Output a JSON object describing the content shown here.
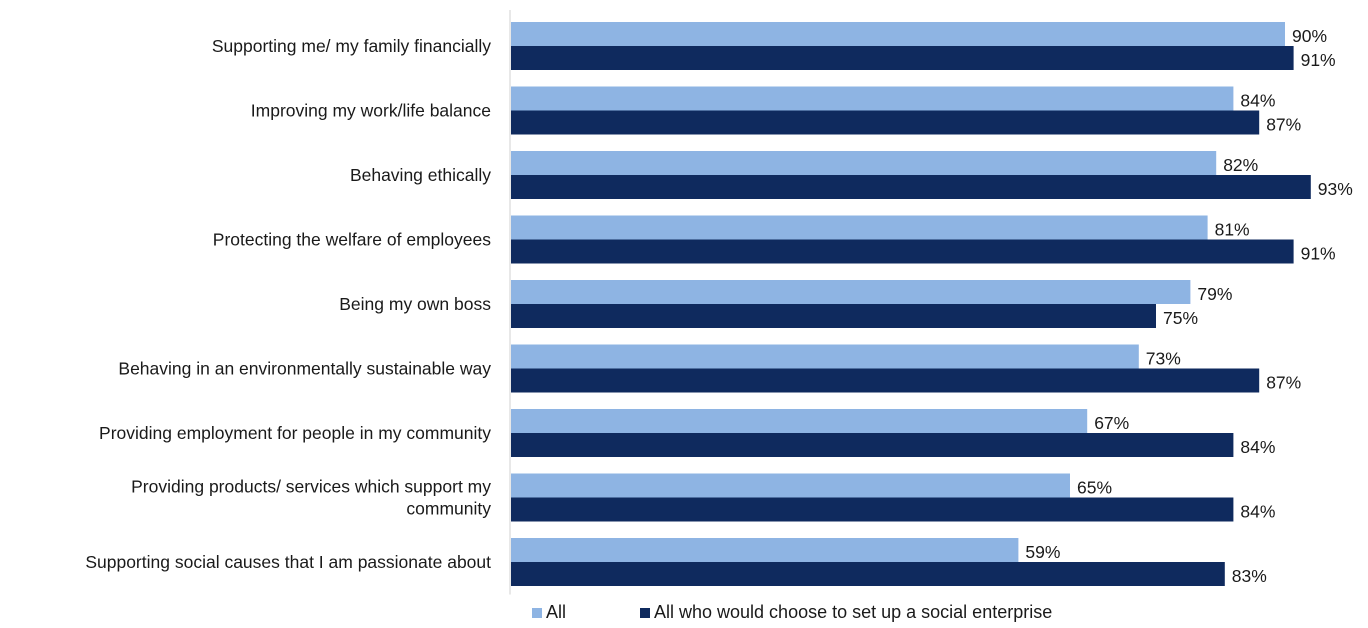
{
  "chart_data": {
    "type": "bar",
    "orientation": "horizontal",
    "title": "",
    "xlabel": "",
    "ylabel": "",
    "xlim": [
      0,
      100
    ],
    "grid": false,
    "legend_position": "bottom",
    "value_suffix": "%",
    "categories": [
      "Supporting me/ my family financially",
      "Improving my work/life balance",
      "Behaving ethically",
      "Protecting the welfare of employees",
      "Being my own boss",
      "Behaving in an environmentally sustainable way",
      "Providing employment for people in my community",
      "Providing products/ services which support my community",
      "Supporting social causes that I am passionate about"
    ],
    "category_lines": [
      [
        "Supporting me/ my family financially"
      ],
      [
        "Improving my work/life balance"
      ],
      [
        "Behaving ethically"
      ],
      [
        "Protecting the welfare of employees"
      ],
      [
        "Being my own boss"
      ],
      [
        "Behaving in an environmentally sustainable way"
      ],
      [
        "Providing employment for people in my community"
      ],
      [
        "Providing products/ services which support my",
        "community"
      ],
      [
        "Supporting social causes that I am passionate about"
      ]
    ],
    "series": [
      {
        "name": "All",
        "color": "#8EB4E3",
        "values": [
          90,
          84,
          82,
          81,
          79,
          73,
          67,
          65,
          59
        ]
      },
      {
        "name": "All who would choose to set up a social enterprise",
        "color": "#0F2A5E",
        "values": [
          91,
          87,
          93,
          91,
          75,
          87,
          84,
          84,
          83
        ]
      }
    ]
  }
}
